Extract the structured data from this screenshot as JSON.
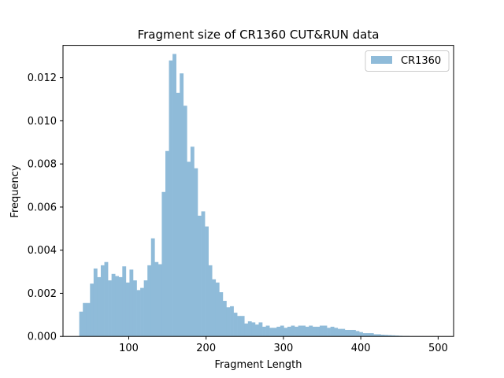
{
  "chart_data": {
    "type": "bar",
    "title": "Fragment size of CR1360 CUT&RUN data",
    "xlabel": "Fragment Length",
    "ylabel": "Frequency",
    "xlim": [
      15,
      520
    ],
    "ylim": [
      0,
      0.0135
    ],
    "x_ticks": [
      100,
      200,
      300,
      400,
      500
    ],
    "x_tick_labels": [
      "100",
      "200",
      "300",
      "400",
      "500"
    ],
    "y_ticks": [
      0,
      0.002,
      0.004,
      0.006,
      0.008,
      0.01,
      0.012
    ],
    "y_tick_labels": [
      "0.000",
      "0.002",
      "0.004",
      "0.006",
      "0.008",
      "0.010",
      "0.012"
    ],
    "bin_start": 36,
    "bin_width": 4.64,
    "series": [
      {
        "name": "CR1360",
        "color": "#8fbbd9",
        "values": [
          0.00115,
          0.00155,
          0.00155,
          0.00245,
          0.00315,
          0.00275,
          0.0033,
          0.00345,
          0.0026,
          0.0029,
          0.0028,
          0.00275,
          0.00325,
          0.0025,
          0.0031,
          0.0026,
          0.00215,
          0.00225,
          0.0026,
          0.0033,
          0.00455,
          0.00345,
          0.00335,
          0.0067,
          0.0086,
          0.0128,
          0.0131,
          0.0113,
          0.0122,
          0.0107,
          0.0081,
          0.0088,
          0.0078,
          0.0056,
          0.0058,
          0.0051,
          0.0033,
          0.00265,
          0.0025,
          0.00205,
          0.00165,
          0.00135,
          0.0014,
          0.0011,
          0.00095,
          0.00095,
          0.0006,
          0.0007,
          0.00065,
          0.00055,
          0.00065,
          0.00045,
          0.0005,
          0.0004,
          0.0004,
          0.00045,
          0.0005,
          0.0004,
          0.00045,
          0.0005,
          0.00045,
          0.0005,
          0.0005,
          0.00045,
          0.0005,
          0.00045,
          0.00045,
          0.0005,
          0.0005,
          0.0004,
          0.00045,
          0.0004,
          0.00035,
          0.00035,
          0.0003,
          0.0003,
          0.0003,
          0.00025,
          0.0002,
          0.00015,
          0.00015,
          0.00015,
          0.0001,
          0.0001,
          8e-05,
          7e-05,
          6e-05,
          5e-05,
          4e-05,
          3e-05,
          2e-05,
          2e-05,
          1e-05,
          1e-05,
          1e-05,
          1e-05
        ]
      }
    ],
    "legend": {
      "position": "top-right",
      "label": "CR1360"
    },
    "grid": false
  }
}
